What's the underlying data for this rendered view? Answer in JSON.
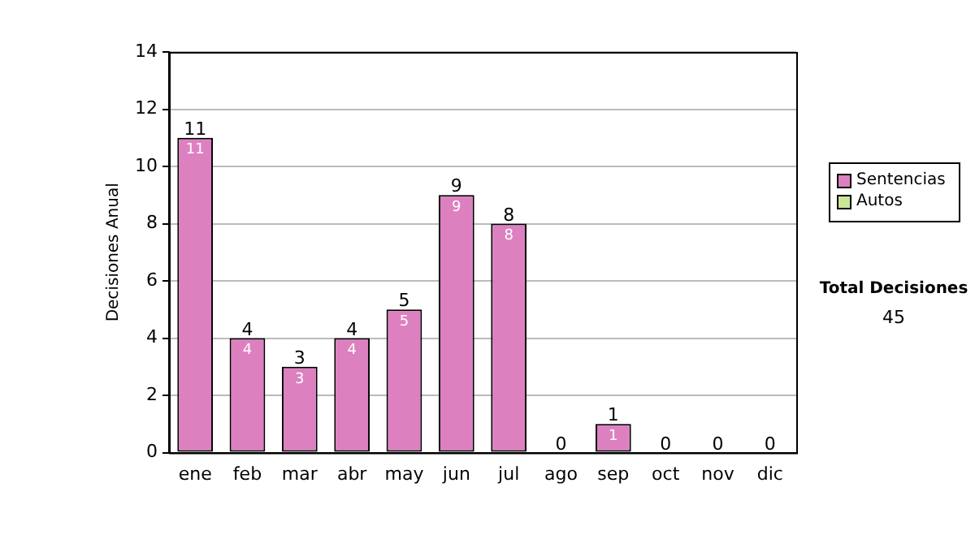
{
  "chart_data": {
    "type": "bar",
    "stacked": true,
    "ylabel": "Decisiones Anual",
    "categories": [
      "ene",
      "feb",
      "mar",
      "abr",
      "may",
      "jun",
      "jul",
      "ago",
      "sep",
      "oct",
      "nov",
      "dic"
    ],
    "series": [
      {
        "name": "Sentencias",
        "color": "#dd80c0",
        "values": [
          11,
          4,
          3,
          4,
          5,
          9,
          8,
          0,
          1,
          0,
          0,
          0
        ],
        "value_labels": [
          "11",
          "4",
          "3",
          "4",
          "5",
          "9",
          "8",
          null,
          "1",
          null,
          null,
          null
        ]
      },
      {
        "name": "Autos",
        "color": "#cce699",
        "values": [
          0,
          0,
          0,
          0,
          0,
          0,
          0,
          0,
          0,
          0,
          0,
          0
        ]
      }
    ],
    "totals": [
      "11",
      "4",
      "3",
      "4",
      "5",
      "9",
      "8",
      "0",
      "1",
      "0",
      "0",
      "0"
    ],
    "ylim": [
      0,
      14
    ],
    "yticks": [
      0,
      2,
      4,
      6,
      8,
      10,
      12,
      14
    ],
    "grid": "y",
    "legend": "right",
    "annotations": [
      "Total Decisiones",
      "45"
    ]
  }
}
